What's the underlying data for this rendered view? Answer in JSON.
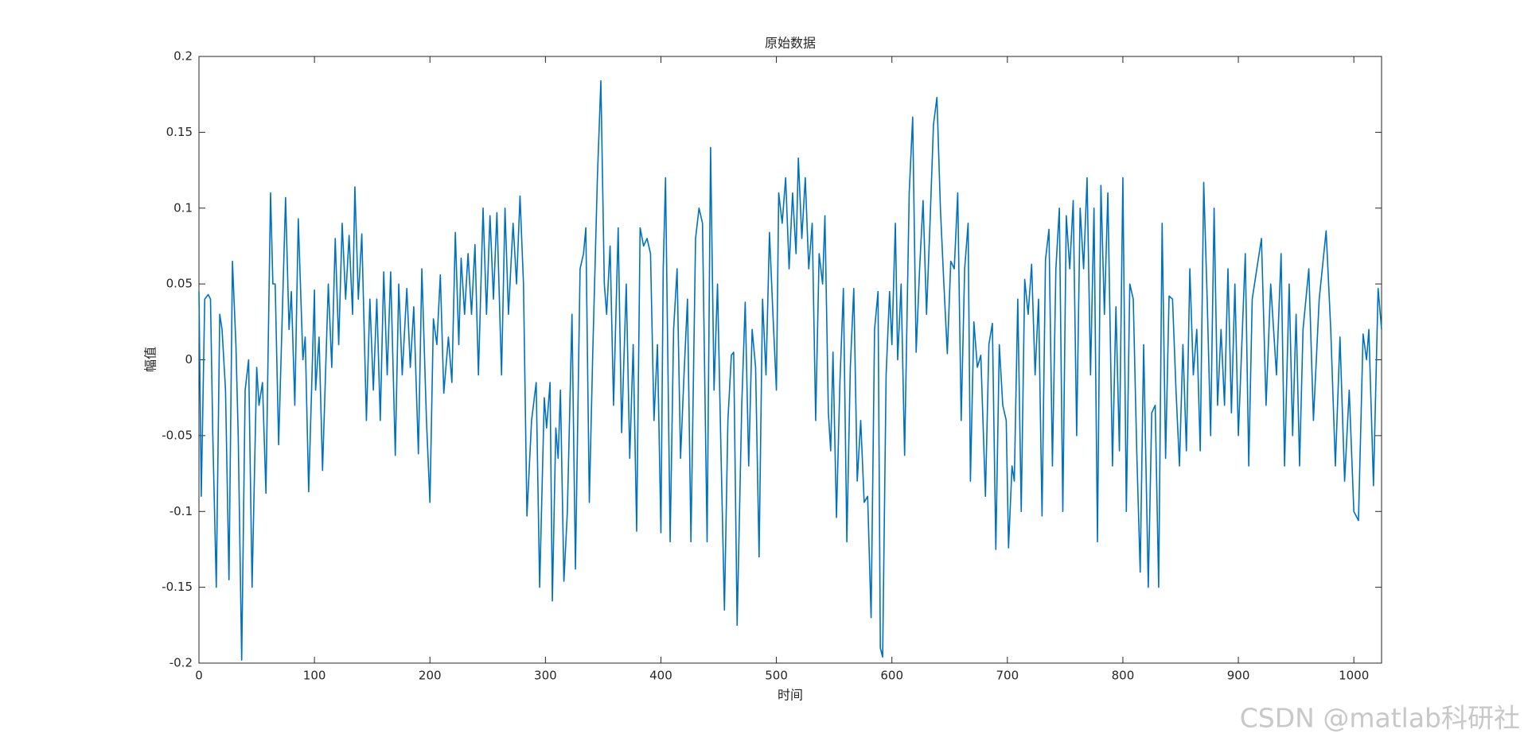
{
  "chart_data": {
    "type": "line",
    "title": "原始数据",
    "x_label": "时间",
    "y_label": "幅值",
    "xlim": [
      0,
      1024
    ],
    "ylim": [
      -0.2,
      0.2
    ],
    "xticks": [
      0,
      100,
      200,
      300,
      400,
      500,
      600,
      700,
      800,
      900,
      1000
    ],
    "yticks": [
      -0.2,
      -0.15,
      -0.1,
      -0.05,
      0,
      0.05,
      0.1,
      0.15,
      0.2
    ],
    "grid": false,
    "x": [
      0,
      2,
      5,
      8,
      10,
      12,
      15,
      18,
      20,
      23,
      26,
      29,
      32,
      34,
      37,
      40,
      43,
      46,
      50,
      52,
      55,
      58,
      62,
      64,
      66,
      69,
      75,
      78,
      80,
      83,
      86,
      90,
      92,
      95,
      100,
      101,
      104,
      107,
      112,
      115,
      118,
      121,
      124,
      127,
      130,
      133,
      135,
      138,
      141,
      145,
      148,
      151,
      154,
      157,
      160,
      163,
      166,
      170,
      173,
      176,
      180,
      183,
      186,
      190,
      193,
      197,
      200,
      203,
      206,
      209,
      212,
      216,
      219,
      222,
      225,
      227,
      230,
      233,
      236,
      239,
      242,
      246,
      249,
      252,
      255,
      258,
      262,
      265,
      268,
      272,
      275,
      278,
      281,
      284,
      288,
      292,
      295,
      299,
      301,
      304,
      306,
      309,
      311,
      313,
      316,
      319,
      323,
      326,
      330,
      333,
      335,
      338,
      341,
      345,
      348,
      351,
      353,
      356,
      359,
      363,
      366,
      370,
      373,
      376,
      379,
      382,
      385,
      388,
      391,
      394,
      397,
      400,
      402,
      404,
      408,
      411,
      414,
      417,
      420,
      423,
      426,
      430,
      433,
      436,
      440,
      443,
      446,
      449,
      452,
      455,
      458,
      461,
      463,
      466,
      470,
      473,
      476,
      479,
      482,
      485,
      488,
      491,
      494,
      497,
      500,
      502,
      505,
      508,
      511,
      514,
      517,
      519,
      522,
      525,
      528,
      531,
      534,
      537,
      540,
      542,
      545,
      547,
      549,
      552,
      555,
      558,
      561,
      564,
      567,
      570,
      573,
      576,
      579,
      582,
      585,
      588,
      590,
      592,
      595,
      598,
      600,
      603,
      605,
      608,
      611,
      615,
      618,
      621,
      624,
      627,
      630,
      633,
      636,
      639,
      642,
      645,
      648,
      651,
      654,
      657,
      660,
      663,
      666,
      668,
      671,
      674,
      677,
      681,
      684,
      687,
      690,
      693,
      696,
      699,
      701,
      704,
      706,
      709,
      712,
      715,
      718,
      721,
      724,
      727,
      730,
      733,
      736,
      739,
      742,
      745,
      748,
      751,
      754,
      757,
      760,
      763,
      766,
      769,
      772,
      775,
      778,
      781,
      784,
      787,
      791,
      794,
      797,
      800,
      803,
      806,
      809,
      812,
      815,
      818,
      822,
      825,
      828,
      831,
      834,
      837,
      840,
      843,
      846,
      849,
      852,
      855,
      858,
      861,
      864,
      867,
      870,
      873,
      876,
      879,
      882,
      885,
      888,
      891,
      894,
      897,
      900,
      903,
      906,
      909,
      912,
      916,
      920,
      924,
      928,
      933,
      937,
      940,
      944,
      947,
      950,
      953,
      956,
      961,
      965,
      970,
      976,
      980,
      984,
      988,
      992,
      996,
      1000,
      1004,
      1008,
      1011,
      1013,
      1017,
      1021,
      1024
    ],
    "series": [
      {
        "name": "原始数据",
        "color": "#0072BD",
        "values": [
          0.045,
          -0.09,
          0.04,
          0.043,
          0.04,
          -0.05,
          -0.15,
          0.03,
          0.02,
          -0.02,
          -0.145,
          0.065,
          0.01,
          -0.05,
          -0.198,
          -0.02,
          0,
          -0.15,
          -0.005,
          -0.03,
          -0.015,
          -0.088,
          0.11,
          0.05,
          0.05,
          -0.056,
          0.107,
          0.02,
          0.045,
          -0.03,
          0.093,
          0,
          0.015,
          -0.087,
          0.046,
          -0.02,
          0.015,
          -0.073,
          0.05,
          -0.005,
          0.08,
          0.01,
          0.09,
          0.04,
          0.082,
          0.03,
          0.114,
          0.04,
          0.083,
          -0.04,
          0.04,
          -0.02,
          0.04,
          -0.04,
          0.058,
          -0.01,
          0.058,
          -0.063,
          0.05,
          -0.01,
          0.047,
          -0.005,
          0.035,
          -0.062,
          0.06,
          -0.04,
          -0.094,
          0.027,
          0.01,
          0.056,
          -0.022,
          0.015,
          -0.015,
          0.084,
          0.01,
          0.067,
          0.03,
          0.07,
          0.03,
          0.076,
          -0.01,
          0.1,
          0.03,
          0.095,
          0.04,
          0.097,
          -0.01,
          0.1,
          0.03,
          0.09,
          0.05,
          0.108,
          0.05,
          -0.103,
          -0.04,
          -0.015,
          -0.15,
          -0.025,
          -0.045,
          -0.015,
          -0.159,
          -0.045,
          -0.065,
          -0.02,
          -0.146,
          -0.1,
          0.03,
          -0.138,
          0.06,
          0.07,
          0.087,
          -0.094,
          0.005,
          0.12,
          0.184,
          0.05,
          0.03,
          0.075,
          -0.03,
          0.087,
          -0.048,
          0.05,
          -0.065,
          0.01,
          -0.113,
          0.087,
          0.075,
          0.08,
          0.07,
          -0.04,
          0.01,
          -0.114,
          0.06,
          0.12,
          -0.12,
          0.02,
          0.06,
          -0.065,
          -0.01,
          0.04,
          -0.12,
          0.08,
          0.1,
          0.09,
          -0.12,
          0.14,
          -0.02,
          0.05,
          -0.06,
          -0.165,
          -0.04,
          0.003,
          0.005,
          -0.175,
          -0.03,
          0.038,
          -0.07,
          0.02,
          -0.005,
          -0.13,
          0.04,
          -0.01,
          0.084,
          0.03,
          -0.02,
          0.11,
          0.09,
          0.12,
          0.06,
          0.11,
          0.07,
          0.133,
          0.08,
          0.12,
          0.06,
          0.09,
          -0.04,
          0.07,
          0.05,
          0.095,
          -0.035,
          -0.06,
          0.005,
          -0.104,
          -0.015,
          0.047,
          -0.12,
          -0.005,
          0.047,
          -0.08,
          -0.04,
          -0.094,
          -0.09,
          -0.17,
          0.02,
          0.045,
          -0.19,
          -0.196,
          -0.01,
          0.045,
          0.01,
          0.09,
          0,
          0.05,
          -0.063,
          0.11,
          0.16,
          0.005,
          0.06,
          0.105,
          0.03,
          0.09,
          0.155,
          0.173,
          0.1,
          0.05,
          0.004,
          0.065,
          0.06,
          0.11,
          -0.04,
          0.06,
          0.09,
          -0.08,
          0.025,
          -0.005,
          0.003,
          -0.09,
          0.01,
          0.024,
          -0.125,
          0.01,
          -0.03,
          -0.04,
          -0.124,
          -0.07,
          -0.08,
          0.04,
          -0.1,
          0.053,
          0.03,
          0.063,
          -0.01,
          0.04,
          -0.103,
          0.066,
          0.086,
          -0.07,
          0.06,
          0.1,
          -0.1,
          0.095,
          0.06,
          0.105,
          -0.05,
          0.1,
          0.06,
          0.12,
          -0.01,
          0.1,
          -0.12,
          0.115,
          0.03,
          0.11,
          -0.07,
          0.035,
          -0.06,
          0.12,
          -0.1,
          0.05,
          0.04,
          -0.06,
          -0.14,
          0.01,
          -0.15,
          -0.035,
          -0.03,
          -0.15,
          0.09,
          -0.065,
          0.042,
          0.04,
          -0.02,
          -0.07,
          0.01,
          -0.06,
          0.06,
          -0.01,
          0.02,
          -0.06,
          0.117,
          0.04,
          -0.05,
          0.1,
          -0.03,
          0.02,
          -0.03,
          0.06,
          -0.035,
          0.05,
          -0.05,
          0.01,
          0.07,
          -0.07,
          0.04,
          0.06,
          0.08,
          -0.03,
          0.05,
          -0.01,
          0.07,
          -0.07,
          0.05,
          -0.05,
          0.03,
          -0.07,
          0.02,
          0.06,
          -0.04,
          0.04,
          0.085,
          0.02,
          -0.07,
          0.015,
          -0.08,
          -0.02,
          -0.1,
          -0.106,
          0.017,
          0,
          0.02,
          -0.083,
          0.047,
          0.02
        ]
      }
    ],
    "watermark": "CSDN @matlab科研社"
  }
}
